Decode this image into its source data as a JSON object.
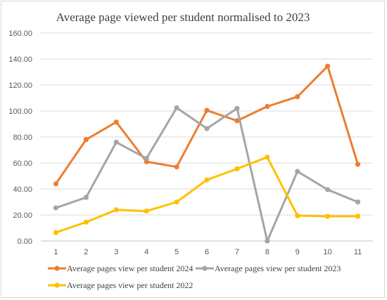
{
  "chart_data": {
    "type": "line",
    "title": "Average page viewed  per student normalised to 2023",
    "xlabel": "",
    "ylabel": "",
    "x": [
      1,
      2,
      3,
      4,
      5,
      6,
      7,
      8,
      9,
      10,
      11
    ],
    "ylim": [
      0,
      160
    ],
    "yticks": [
      "0.00",
      "20.00",
      "40.00",
      "60.00",
      "80.00",
      "100.00",
      "120.00",
      "140.00",
      "160.00"
    ],
    "grid": "horizontal",
    "legend_position": "bottom",
    "series": [
      {
        "name": "Average pages view per student  2024",
        "color": "#ED7D31",
        "values": [
          44,
          78,
          91.5,
          61,
          57,
          100.5,
          92.5,
          103.5,
          111,
          134.5,
          59
        ]
      },
      {
        "name": "Average pages view per student  2023",
        "color": "#A5A5A5",
        "values": [
          25.5,
          33.5,
          76,
          63.5,
          102.5,
          86.5,
          102,
          0,
          53.5,
          39.5,
          30
        ]
      },
      {
        "name": "Average pages view per student  2022",
        "color": "#FFC000",
        "values": [
          6.5,
          14.5,
          24,
          23,
          30,
          47,
          55.5,
          64.5,
          19.5,
          19,
          19
        ]
      }
    ]
  }
}
